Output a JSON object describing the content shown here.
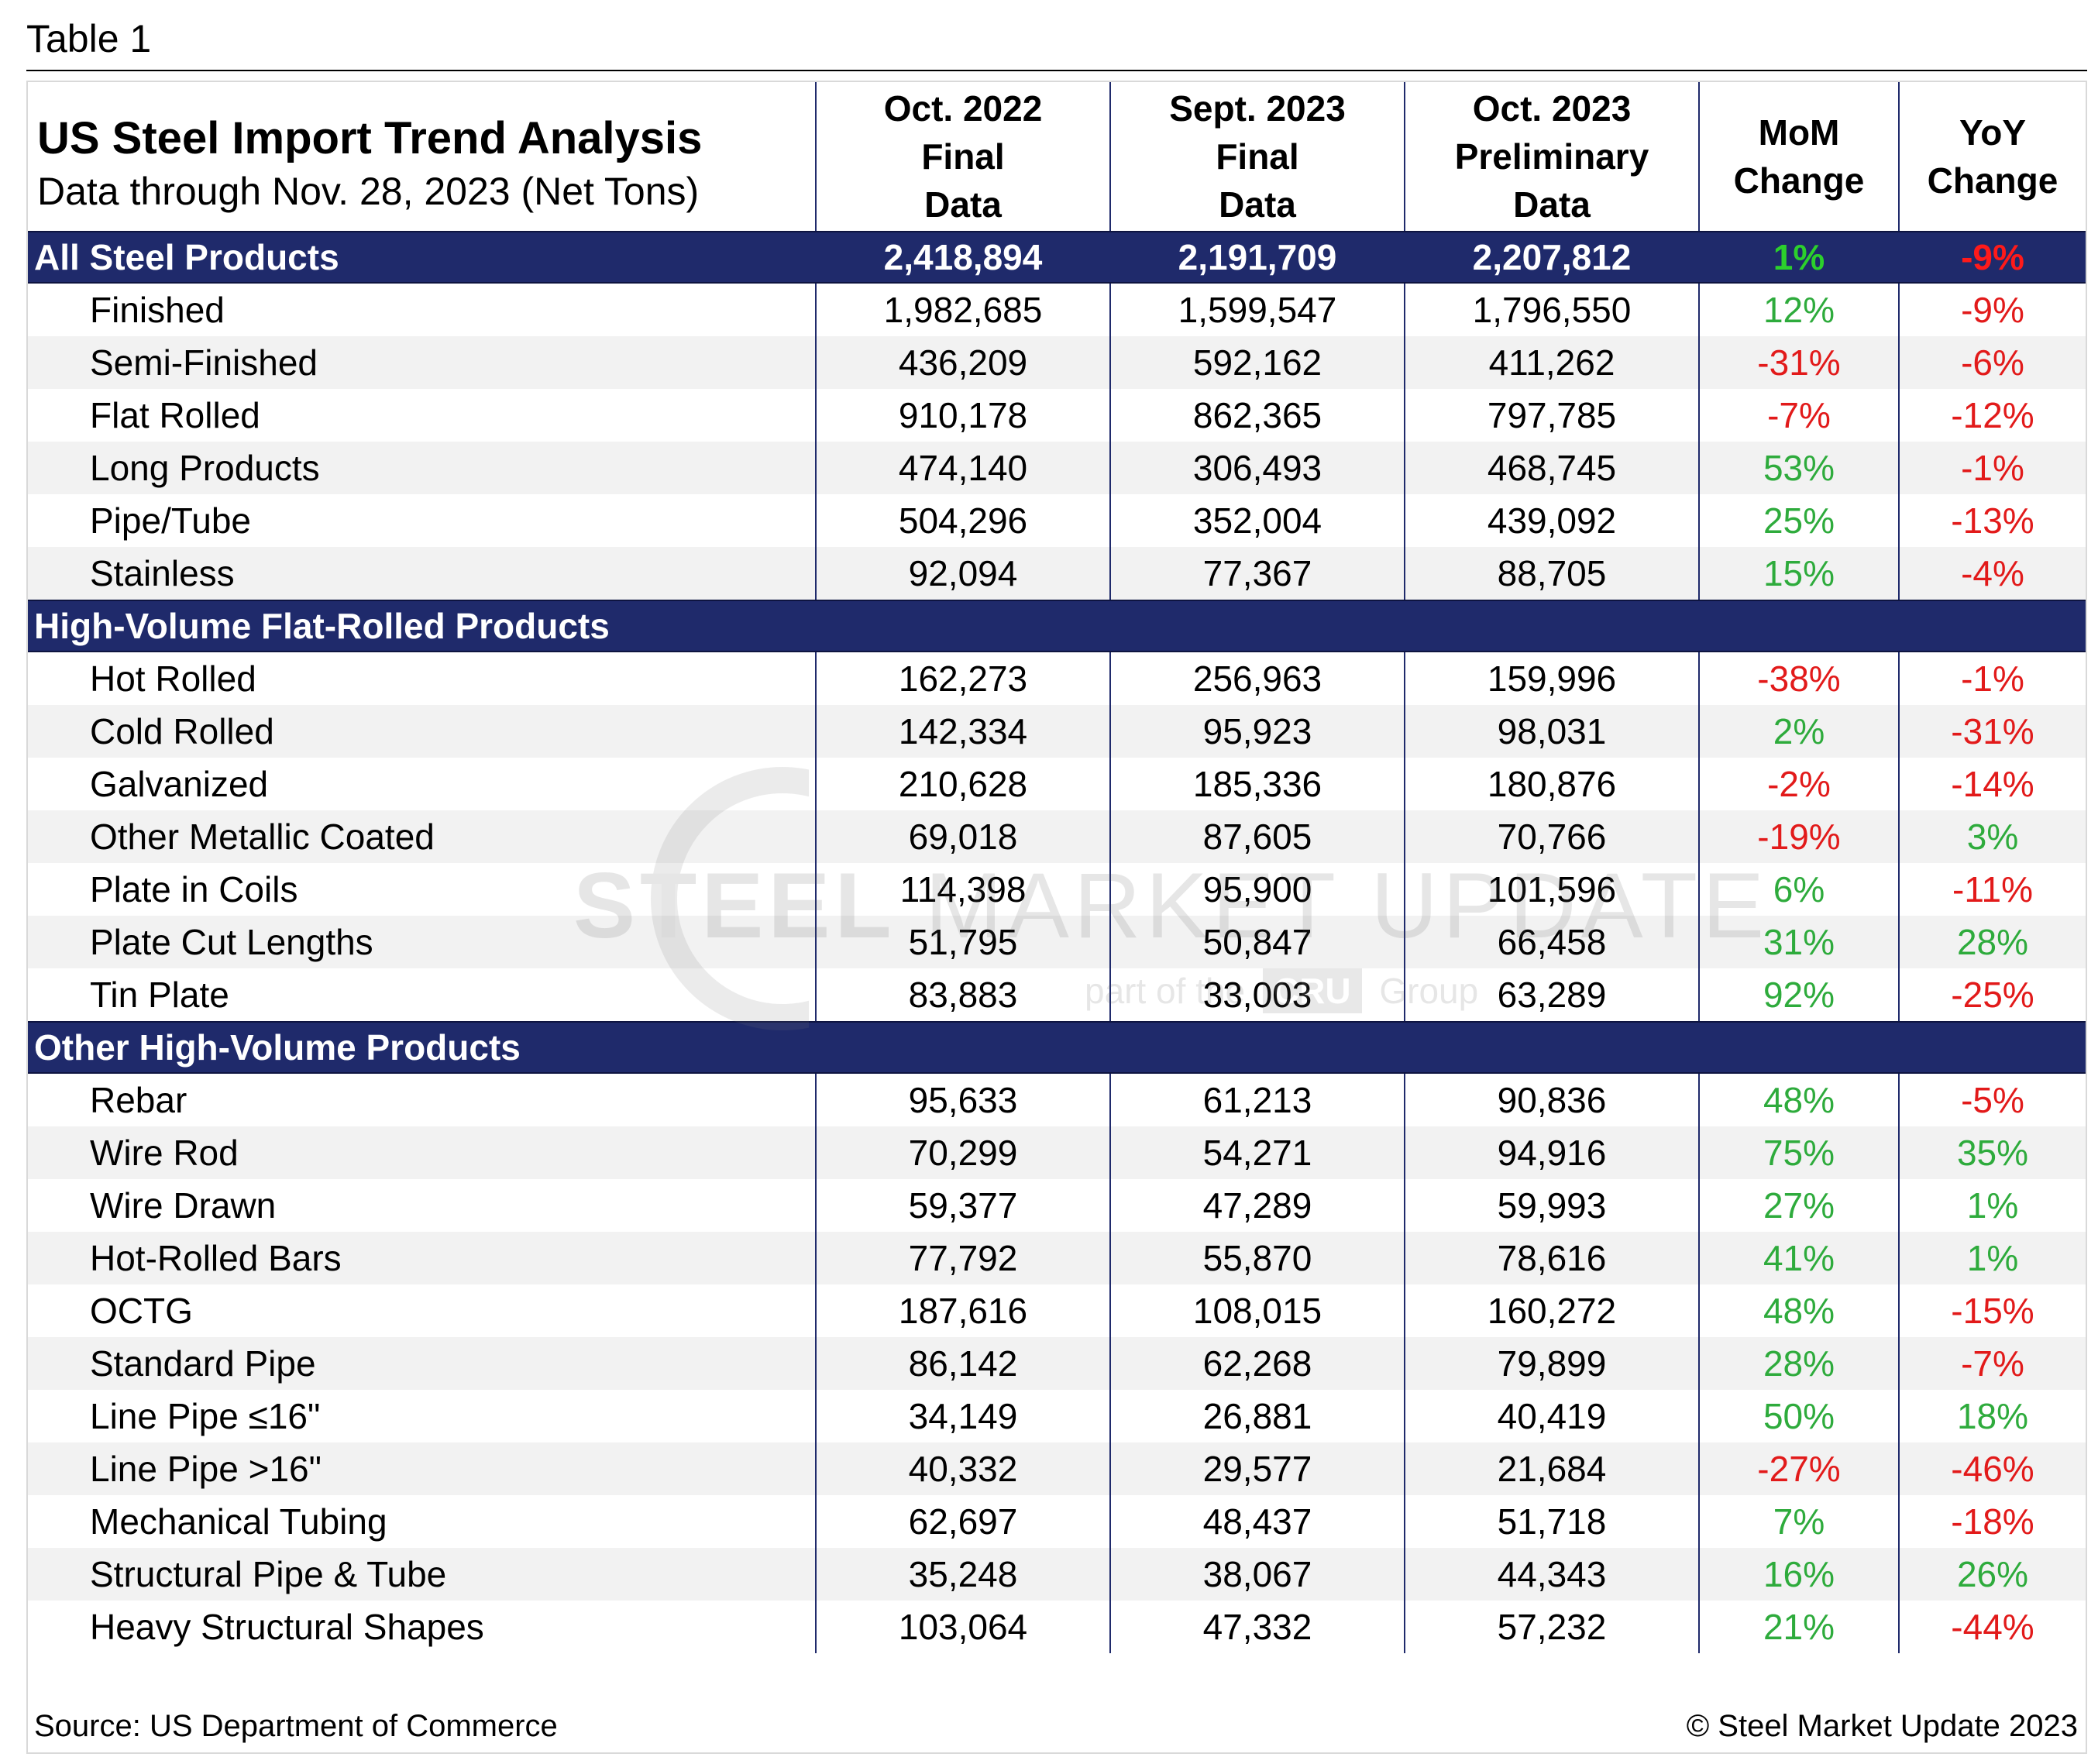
{
  "caption": "Table 1",
  "header": {
    "title": "US Steel Import Trend Analysis",
    "subtitle": "Data through Nov. 28, 2023 (Net Tons)",
    "col1": [
      "Oct. 2022",
      "Final",
      "Data"
    ],
    "col2": [
      "Sept. 2023",
      "Final",
      "Data"
    ],
    "col3": [
      "Oct. 2023",
      "Preliminary",
      "Data"
    ],
    "col4": [
      "MoM",
      "Change"
    ],
    "col5": [
      "YoY",
      "Change"
    ]
  },
  "sections": [
    {
      "label": "All Steel Products",
      "values": [
        "2,418,894",
        "2,191,709",
        "2,207,812",
        "1%",
        "-9%"
      ],
      "rows": [
        {
          "name": "Finished",
          "v": [
            "1,982,685",
            "1,599,547",
            "1,796,550",
            "12%",
            "-9%"
          ]
        },
        {
          "name": "Semi-Finished",
          "v": [
            "436,209",
            "592,162",
            "411,262",
            "-31%",
            "-6%"
          ]
        },
        {
          "name": "Flat Rolled",
          "v": [
            "910,178",
            "862,365",
            "797,785",
            "-7%",
            "-12%"
          ]
        },
        {
          "name": "Long Products",
          "v": [
            "474,140",
            "306,493",
            "468,745",
            "53%",
            "-1%"
          ]
        },
        {
          "name": "Pipe/Tube",
          "v": [
            "504,296",
            "352,004",
            "439,092",
            "25%",
            "-13%"
          ]
        },
        {
          "name": "Stainless",
          "v": [
            "92,094",
            "77,367",
            "88,705",
            "15%",
            "-4%"
          ]
        }
      ]
    },
    {
      "label": "High-Volume Flat-Rolled Products",
      "values": [
        "",
        "",
        "",
        "",
        ""
      ],
      "rows": [
        {
          "name": "Hot Rolled",
          "v": [
            "162,273",
            "256,963",
            "159,996",
            "-38%",
            "-1%"
          ]
        },
        {
          "name": "Cold Rolled",
          "v": [
            "142,334",
            "95,923",
            "98,031",
            "2%",
            "-31%"
          ]
        },
        {
          "name": "Galvanized",
          "v": [
            "210,628",
            "185,336",
            "180,876",
            "-2%",
            "-14%"
          ]
        },
        {
          "name": "Other Metallic Coated",
          "v": [
            "69,018",
            "87,605",
            "70,766",
            "-19%",
            "3%"
          ]
        },
        {
          "name": "Plate in Coils",
          "v": [
            "114,398",
            "95,900",
            "101,596",
            "6%",
            "-11%"
          ]
        },
        {
          "name": "Plate Cut Lengths",
          "v": [
            "51,795",
            "50,847",
            "66,458",
            "31%",
            "28%"
          ]
        },
        {
          "name": "Tin Plate",
          "v": [
            "83,883",
            "33,003",
            "63,289",
            "92%",
            "-25%"
          ]
        }
      ]
    },
    {
      "label": "Other High-Volume Products",
      "values": [
        "",
        "",
        "",
        "",
        ""
      ],
      "rows": [
        {
          "name": "Rebar",
          "v": [
            "95,633",
            "61,213",
            "90,836",
            "48%",
            "-5%"
          ]
        },
        {
          "name": "Wire Rod",
          "v": [
            "70,299",
            "54,271",
            "94,916",
            "75%",
            "35%"
          ]
        },
        {
          "name": "Wire Drawn",
          "v": [
            "59,377",
            "47,289",
            "59,993",
            "27%",
            "1%"
          ]
        },
        {
          "name": "Hot-Rolled Bars",
          "v": [
            "77,792",
            "55,870",
            "78,616",
            "41%",
            "1%"
          ]
        },
        {
          "name": "OCTG",
          "v": [
            "187,616",
            "108,015",
            "160,272",
            "48%",
            "-15%"
          ]
        },
        {
          "name": "Standard Pipe",
          "v": [
            "86,142",
            "62,268",
            "79,899",
            "28%",
            "-7%"
          ]
        },
        {
          "name": "Line Pipe ≤16\"",
          "v": [
            "34,149",
            "26,881",
            "40,419",
            "50%",
            "18%"
          ]
        },
        {
          "name": "Line Pipe >16\"",
          "v": [
            "40,332",
            "29,577",
            "21,684",
            "-27%",
            "-46%"
          ]
        },
        {
          "name": "Mechanical Tubing",
          "v": [
            "62,697",
            "48,437",
            "51,718",
            "7%",
            "-18%"
          ]
        },
        {
          "name": "Structural Pipe & Tube",
          "v": [
            "35,248",
            "38,067",
            "44,343",
            "16%",
            "26%"
          ]
        },
        {
          "name": "Heavy Structural Shapes",
          "v": [
            "103,064",
            "47,332",
            "57,232",
            "21%",
            "-44%"
          ]
        }
      ]
    }
  ],
  "watermark": {
    "brand_bold": "STEEL",
    "brand_mid": "MARKET",
    "brand_light": "UPDATE",
    "sub_pre": "part of the",
    "sub_badge": "CRU",
    "sub_post": "Group"
  },
  "footer": {
    "source": "Source: US Department of Commerce",
    "copyright": "© Steel Market Update 2023"
  },
  "colors": {
    "band": "#1f2a6b",
    "positive": "#2eab3c",
    "negative": "#e21a1a",
    "stripe": "#f2f2f2"
  }
}
